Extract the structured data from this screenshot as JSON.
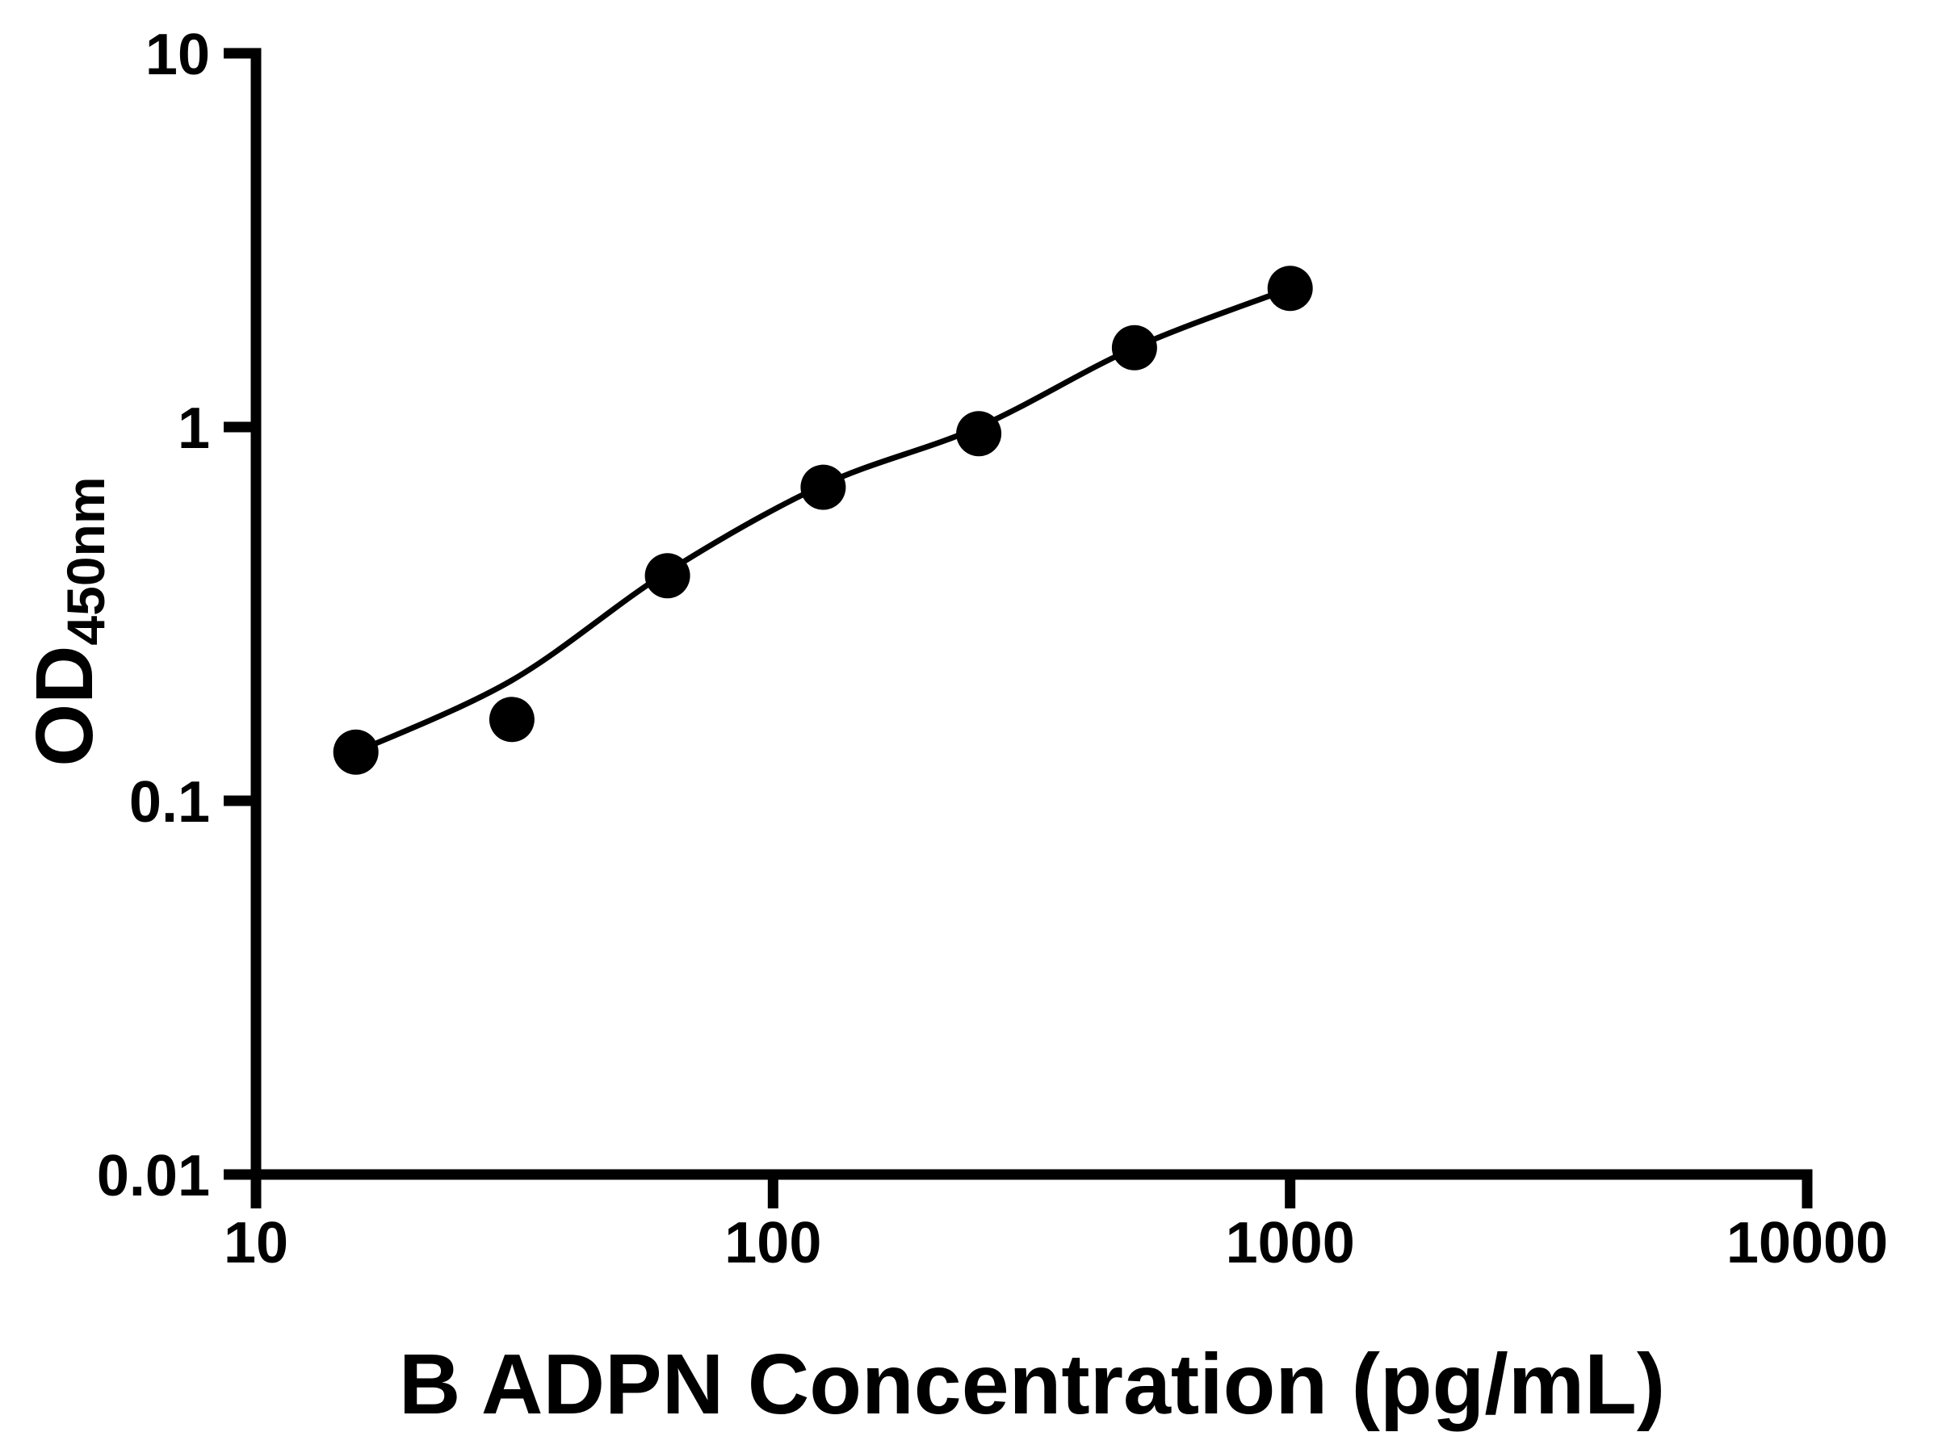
{
  "colors": {
    "foreground": "#000000",
    "background": "#ffffff"
  },
  "chart_data": {
    "type": "scatter",
    "title": "",
    "xlabel": "B ADPN Concentration (pg/mL)",
    "ylabel": "OD450nm",
    "ylabel_main": "OD",
    "ylabel_sub": "450nm",
    "x_scale": "log",
    "y_scale": "log",
    "xlim": [
      10,
      10000
    ],
    "ylim": [
      0.01,
      10
    ],
    "grid": false,
    "legend": false,
    "x_ticks": [
      {
        "value": 10,
        "label": "10"
      },
      {
        "value": 100,
        "label": "100"
      },
      {
        "value": 1000,
        "label": "1000"
      },
      {
        "value": 10000,
        "label": "10000"
      }
    ],
    "y_ticks": [
      {
        "value": 0.01,
        "label": "0.01"
      },
      {
        "value": 0.1,
        "label": "0.1"
      },
      {
        "value": 1,
        "label": "1"
      },
      {
        "value": 10,
        "label": "10"
      }
    ],
    "series": [
      {
        "name": "standard-points",
        "type": "scatter",
        "marker": "filled-circle",
        "color": "#000000",
        "points": [
          [
            15.6,
            0.135
          ],
          [
            31.25,
            0.165
          ],
          [
            62.5,
            0.4
          ],
          [
            125,
            0.69
          ],
          [
            250,
            0.96
          ],
          [
            500,
            1.63
          ],
          [
            1000,
            2.35
          ]
        ]
      },
      {
        "name": "fit-curve",
        "type": "line",
        "color": "#000000",
        "points": [
          [
            15.6,
            0.135
          ],
          [
            31.25,
            0.21
          ],
          [
            62.5,
            0.41
          ],
          [
            125,
            0.7
          ],
          [
            250,
            1.0
          ],
          [
            500,
            1.63
          ],
          [
            1000,
            2.35
          ]
        ]
      }
    ]
  }
}
